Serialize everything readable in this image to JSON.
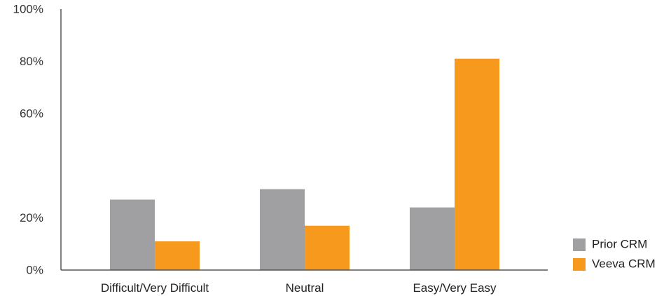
{
  "chart_data": {
    "type": "bar",
    "title": "",
    "xlabel": "",
    "ylabel": "",
    "categories": [
      "Difficult/Very Difficult",
      "Neutral",
      "Easy/Very Easy"
    ],
    "series": [
      {
        "name": "Prior CRM",
        "values": [
          27,
          31,
          24
        ],
        "color": "#a09fa1"
      },
      {
        "name": "Veeva CRM",
        "values": [
          11,
          17,
          81
        ],
        "color": "#f7991c"
      }
    ],
    "ylim": [
      0,
      100
    ],
    "yticks": [
      {
        "value": 0,
        "label": "0%"
      },
      {
        "value": 20,
        "label": "20%"
      },
      {
        "value": 60,
        "label": "60%"
      },
      {
        "value": 80,
        "label": "80%"
      },
      {
        "value": 100,
        "label": "100%"
      }
    ],
    "grid": false,
    "legend": "bottom-right"
  }
}
